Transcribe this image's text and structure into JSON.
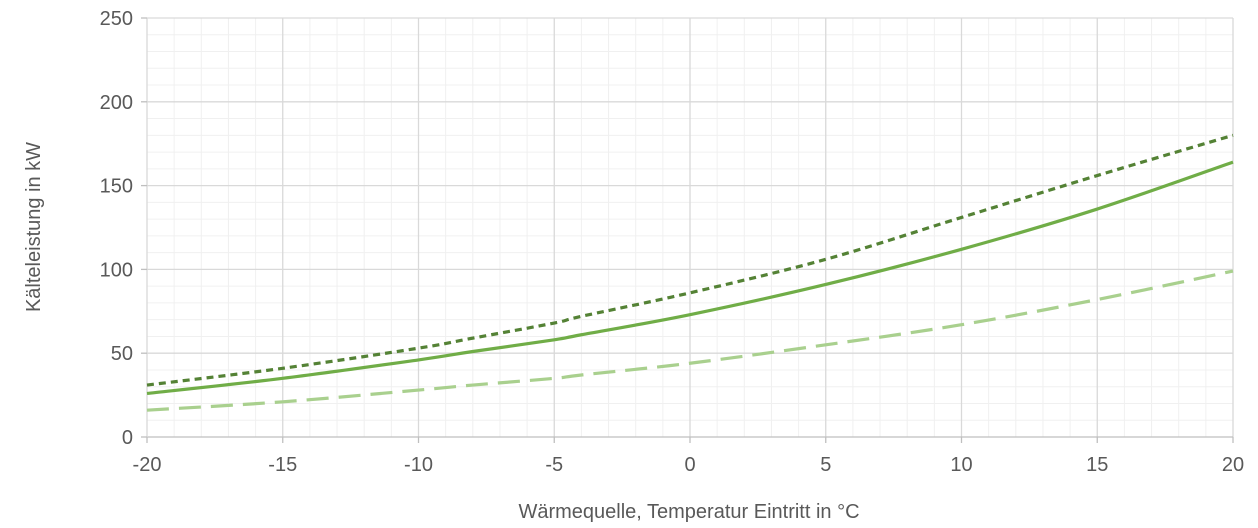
{
  "chart_data": {
    "type": "line",
    "title": "",
    "xlabel": "Wärmequelle, Temperatur Eintritt in °C",
    "ylabel": "Kälteleistung in kW",
    "xlim": [
      -20,
      20
    ],
    "ylim": [
      0,
      250
    ],
    "x_major_ticks": [
      -20,
      -15,
      -10,
      -5,
      0,
      5,
      10,
      15,
      20
    ],
    "x_tick_labels": [
      "-20",
      "-15",
      "-10",
      "-5",
      "0",
      "5",
      "10",
      "15",
      "20"
    ],
    "y_major_ticks": [
      0,
      50,
      100,
      150,
      200,
      250
    ],
    "y_tick_labels": [
      "0",
      "50",
      "100",
      "150",
      "200",
      "250"
    ],
    "x_minor_step": 1,
    "y_minor_step": 10,
    "grid": true,
    "legend": "none",
    "x": [
      -20,
      -15,
      -10,
      -8,
      -5,
      -4,
      0,
      5,
      10,
      15,
      20
    ],
    "series": [
      {
        "values": [
          31,
          41,
          53,
          59,
          68,
          72,
          86,
          106,
          131,
          156,
          180
        ],
        "color": "#548235",
        "line_style": "short-dash"
      },
      {
        "values": [
          26,
          35,
          46,
          51,
          58,
          61,
          73,
          91,
          112,
          136,
          164
        ],
        "color": "#70ad47",
        "line_style": "solid"
      },
      {
        "values": [
          16,
          21,
          28,
          31,
          35,
          37,
          44,
          55,
          67,
          82,
          99
        ],
        "color": "#a9d08e",
        "line_style": "long-dash"
      }
    ]
  }
}
